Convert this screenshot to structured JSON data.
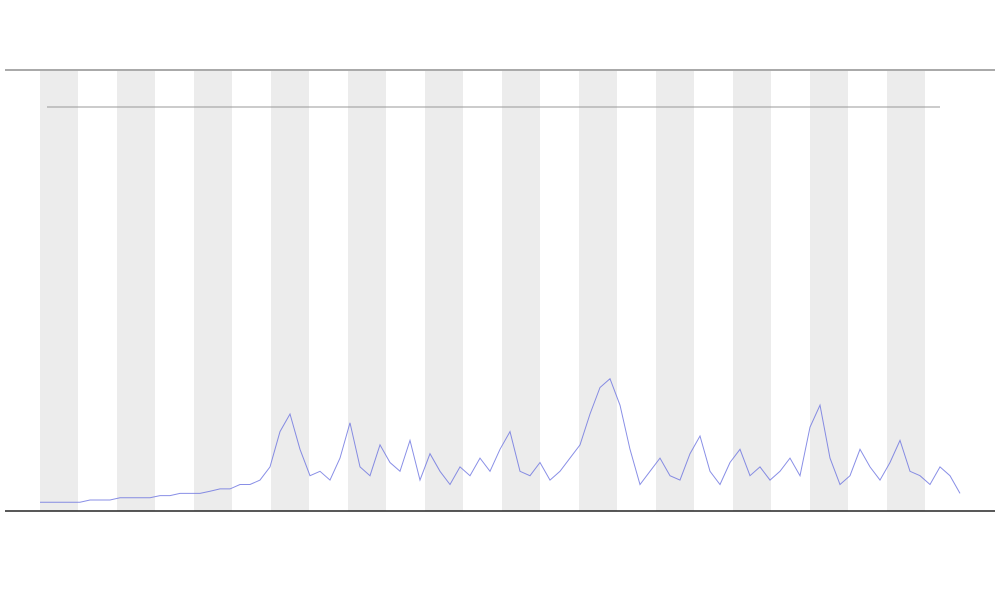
{
  "chart_data": {
    "type": "line",
    "series": [
      {
        "color": "#6b73e0",
        "values": [
          2,
          2,
          2,
          2,
          2,
          2.5,
          2.5,
          2.5,
          3,
          3,
          3,
          3,
          3.5,
          3.5,
          4,
          4,
          4,
          4.5,
          5,
          5,
          6,
          6,
          7,
          10,
          18,
          22,
          14,
          8,
          9,
          7,
          12,
          20,
          10,
          8,
          15,
          11,
          9,
          16,
          7,
          13,
          9,
          6,
          10,
          8,
          12,
          9,
          14,
          18,
          9,
          8,
          11,
          7,
          9,
          12,
          15,
          22,
          28,
          30,
          24,
          14,
          6,
          9,
          12,
          8,
          7,
          13,
          17,
          9,
          6,
          11,
          14,
          8,
          10,
          7,
          9,
          12,
          8,
          19,
          24,
          12,
          6,
          8,
          14,
          10,
          7,
          11,
          16,
          9,
          8,
          6,
          10,
          8,
          4
        ]
      }
    ],
    "ylim": [
      0,
      100
    ]
  }
}
